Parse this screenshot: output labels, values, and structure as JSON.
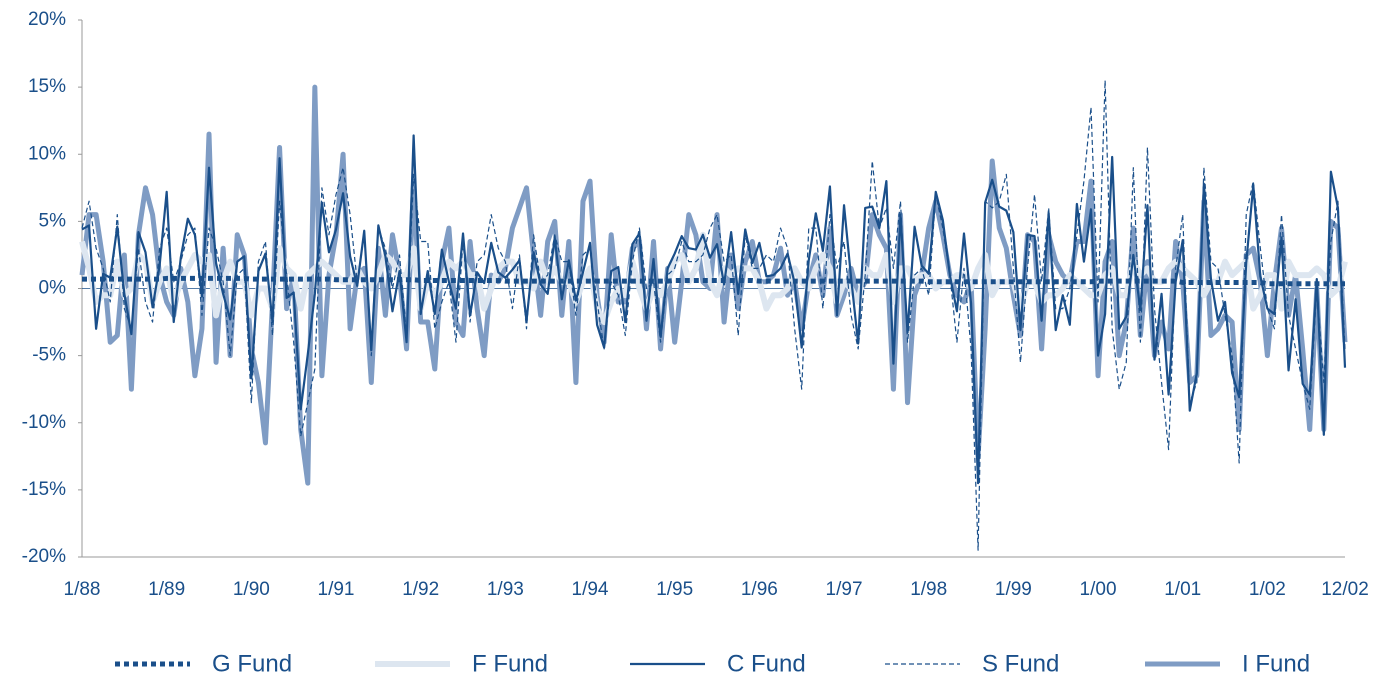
{
  "chart_data": {
    "type": "line",
    "categories": [
      "1/88",
      null,
      null,
      null,
      null,
      null,
      null,
      null,
      null,
      null,
      null,
      null,
      "1/89",
      null,
      null,
      null,
      null,
      null,
      null,
      null,
      null,
      null,
      null,
      null,
      "1/90",
      null,
      null,
      null,
      null,
      null,
      null,
      null,
      null,
      null,
      null,
      null,
      "1/91",
      null,
      null,
      null,
      null,
      null,
      null,
      null,
      null,
      null,
      null,
      null,
      "1/92",
      null,
      null,
      null,
      null,
      null,
      null,
      null,
      null,
      null,
      null,
      null,
      "1/93",
      null,
      null,
      null,
      null,
      null,
      null,
      null,
      null,
      null,
      null,
      null,
      "1/94",
      null,
      null,
      null,
      null,
      null,
      null,
      null,
      null,
      null,
      null,
      null,
      "1/95",
      null,
      null,
      null,
      null,
      null,
      null,
      null,
      null,
      null,
      null,
      null,
      "1/96",
      null,
      null,
      null,
      null,
      null,
      null,
      null,
      null,
      null,
      null,
      null,
      "1/97",
      null,
      null,
      null,
      null,
      null,
      null,
      null,
      null,
      null,
      null,
      null,
      "1/98",
      null,
      null,
      null,
      null,
      null,
      null,
      null,
      null,
      null,
      null,
      null,
      "1/99",
      null,
      null,
      null,
      null,
      null,
      null,
      null,
      null,
      null,
      null,
      null,
      "1/00",
      null,
      null,
      null,
      null,
      null,
      null,
      null,
      null,
      null,
      null,
      null,
      "1/01",
      null,
      null,
      null,
      null,
      null,
      null,
      null,
      null,
      null,
      null,
      null,
      "1/02",
      null,
      null,
      null,
      null,
      null,
      null,
      null,
      null,
      null,
      null,
      "12/02"
    ],
    "ylim": [
      -20,
      20
    ],
    "yticks": [
      {
        "value": -20,
        "label": "-20%"
      },
      {
        "value": -15,
        "label": "-15%"
      },
      {
        "value": -10,
        "label": "-10%"
      },
      {
        "value": -5,
        "label": "-5%"
      },
      {
        "value": 0,
        "label": "0%"
      },
      {
        "value": 5,
        "label": "5%"
      },
      {
        "value": 10,
        "label": "10%"
      },
      {
        "value": 15,
        "label": "15%"
      },
      {
        "value": 20,
        "label": "20%"
      }
    ],
    "series": [
      {
        "name": "G Fund",
        "color": "#1a4f8a",
        "style": "dotted",
        "values": [
          0.7,
          0.7,
          0.7,
          0.7,
          0.7,
          0.7,
          0.7,
          0.7,
          0.7,
          0.7,
          0.7,
          0.7,
          0.75,
          0.75,
          0.75,
          0.75,
          0.75,
          0.75,
          0.75,
          0.75,
          0.75,
          0.75,
          0.75,
          0.75,
          0.7,
          0.7,
          0.7,
          0.7,
          0.7,
          0.7,
          0.7,
          0.7,
          0.7,
          0.7,
          0.7,
          0.7,
          0.65,
          0.65,
          0.65,
          0.65,
          0.65,
          0.65,
          0.65,
          0.65,
          0.65,
          0.65,
          0.65,
          0.65,
          0.6,
          0.6,
          0.6,
          0.6,
          0.6,
          0.6,
          0.6,
          0.6,
          0.6,
          0.6,
          0.6,
          0.6,
          0.55,
          0.55,
          0.55,
          0.55,
          0.55,
          0.55,
          0.55,
          0.55,
          0.55,
          0.55,
          0.55,
          0.55,
          0.55,
          0.55,
          0.55,
          0.55,
          0.55,
          0.55,
          0.55,
          0.55,
          0.55,
          0.55,
          0.55,
          0.55,
          0.6,
          0.6,
          0.6,
          0.6,
          0.6,
          0.6,
          0.6,
          0.6,
          0.6,
          0.6,
          0.6,
          0.6,
          0.55,
          0.55,
          0.55,
          0.55,
          0.55,
          0.55,
          0.55,
          0.55,
          0.55,
          0.55,
          0.55,
          0.55,
          0.55,
          0.55,
          0.55,
          0.55,
          0.55,
          0.55,
          0.55,
          0.55,
          0.55,
          0.55,
          0.55,
          0.55,
          0.5,
          0.5,
          0.5,
          0.5,
          0.5,
          0.5,
          0.5,
          0.5,
          0.5,
          0.5,
          0.5,
          0.5,
          0.5,
          0.5,
          0.5,
          0.5,
          0.5,
          0.5,
          0.5,
          0.5,
          0.5,
          0.5,
          0.5,
          0.5,
          0.55,
          0.55,
          0.55,
          0.55,
          0.55,
          0.55,
          0.55,
          0.55,
          0.55,
          0.55,
          0.55,
          0.55,
          0.45,
          0.45,
          0.45,
          0.45,
          0.45,
          0.45,
          0.45,
          0.45,
          0.45,
          0.45,
          0.45,
          0.45,
          0.35,
          0.35,
          0.35,
          0.35,
          0.35,
          0.35,
          0.35,
          0.35,
          0.35,
          0.35,
          0.35,
          0.35
        ]
      },
      {
        "name": "F Fund",
        "color": "#dde6f0",
        "style": "thick",
        "values": [
          3.5,
          1.5,
          -1.0,
          -0.5,
          -0.5,
          2.0,
          -0.5,
          0.0,
          2.5,
          2.0,
          -1.0,
          0.5,
          1.5,
          -1.0,
          0.5,
          1.5,
          2.5,
          2.0,
          2.5,
          -2.0,
          0.5,
          2.0,
          0.5,
          0.5,
          -2.0,
          0.0,
          0.0,
          -1.5,
          3.0,
          1.5,
          1.0,
          -1.5,
          1.0,
          1.5,
          2.0,
          1.5,
          1.0,
          0.5,
          0.5,
          1.5,
          0.5,
          0.0,
          1.0,
          2.5,
          2.0,
          1.0,
          1.0,
          3.0,
          -1.5,
          0.5,
          -0.5,
          0.5,
          2.0,
          1.5,
          2.0,
          1.0,
          1.0,
          -1.5,
          0.0,
          1.5,
          2.0,
          2.0,
          0.5,
          0.5,
          0.0,
          2.0,
          0.5,
          1.5,
          0.5,
          0.5,
          -1.0,
          0.5,
          1.5,
          -1.5,
          -2.5,
          -1.0,
          0.0,
          -0.5,
          2.0,
          0.0,
          -1.5,
          0.0,
          -0.5,
          0.5,
          2.0,
          2.5,
          0.5,
          1.5,
          4.0,
          0.5,
          -0.5,
          1.5,
          1.0,
          1.5,
          1.5,
          1.5,
          0.5,
          -1.5,
          -0.5,
          -0.5,
          0.0,
          1.5,
          0.5,
          0.0,
          1.5,
          2.5,
          1.5,
          -1.0,
          0.5,
          0.0,
          -1.0,
          1.5,
          1.0,
          1.0,
          2.5,
          -1.0,
          1.5,
          1.5,
          0.5,
          1.0,
          1.0,
          0.0,
          0.5,
          0.5,
          1.0,
          1.0,
          0.0,
          1.5,
          2.5,
          -0.5,
          0.5,
          0.5,
          0.5,
          -1.5,
          0.5,
          0.5,
          -1.0,
          -0.5,
          -0.5,
          0.0,
          1.0,
          0.5,
          0.0,
          -0.5,
          -0.5,
          1.0,
          1.5,
          -0.5,
          -0.5,
          2.0,
          1.0,
          1.5,
          0.5,
          0.5,
          1.5,
          2.0,
          1.5,
          1.0,
          0.5,
          -0.5,
          0.5,
          0.5,
          2.0,
          1.0,
          1.5,
          2.0,
          -1.5,
          -0.5,
          1.0,
          1.0,
          -1.5,
          2.0,
          1.0,
          1.0,
          1.0,
          1.5,
          1.0,
          -0.5,
          0.0,
          2.0
        ]
      },
      {
        "name": "C Fund",
        "color": "#1a4f8a",
        "style": "solid",
        "values": [
          4.4,
          4.7,
          -3.0,
          1.1,
          0.8,
          4.6,
          -0.4,
          -3.4,
          4.2,
          2.7,
          -1.4,
          1.7,
          7.2,
          -2.5,
          2.3,
          5.2,
          4.0,
          -0.6,
          9.0,
          1.9,
          -0.4,
          -2.3,
          2.0,
          2.4,
          -6.7,
          1.3,
          2.6,
          -2.5,
          9.7,
          -0.7,
          -0.3,
          -9.0,
          -4.9,
          -0.4,
          6.4,
          2.7,
          4.4,
          7.1,
          2.4,
          0.2,
          4.3,
          -4.6,
          4.7,
          2.4,
          -1.7,
          1.3,
          -4.0,
          11.4,
          -1.9,
          1.3,
          -1.9,
          2.9,
          0.5,
          -1.5,
          4.1,
          -2.0,
          1.2,
          0.4,
          3.4,
          1.2,
          0.8,
          1.4,
          2.1,
          -2.4,
          2.7,
          0.3,
          -0.4,
          3.8,
          -0.8,
          2.1,
          -0.9,
          1.2,
          3.4,
          -2.7,
          -4.4,
          1.3,
          1.6,
          -2.5,
          3.3,
          4.1,
          -2.4,
          2.2,
          -3.6,
          1.5,
          2.6,
          3.9,
          3.0,
          2.9,
          4.0,
          2.3,
          3.3,
          0.3,
          4.2,
          -0.4,
          4.4,
          1.9,
          3.4,
          0.9,
          1.0,
          1.5,
          2.6,
          0.4,
          -4.4,
          2.1,
          5.6,
          2.8,
          7.6,
          -2.0,
          6.2,
          0.8,
          -4.1,
          6.0,
          6.1,
          4.5,
          8.0,
          -5.6,
          5.5,
          -3.3,
          4.6,
          1.7,
          1.1,
          7.2,
          5.1,
          1.0,
          -1.7,
          4.1,
          -1.1,
          -14.5,
          6.4,
          8.1,
          6.1,
          5.8,
          4.2,
          -3.1,
          4.0,
          3.9,
          -2.4,
          5.6,
          -3.1,
          -0.5,
          -2.7,
          6.3,
          2.0,
          5.9,
          -5.0,
          -1.9,
          9.8,
          -3.0,
          -2.1,
          2.5,
          -1.6,
          6.2,
          -5.3,
          -0.4,
          -7.9,
          0.5,
          3.6,
          -9.1,
          -6.3,
          7.8,
          0.7,
          -2.4,
          -1.0,
          -6.3,
          -8.1,
          1.9,
          7.7,
          0.9,
          -1.5,
          -1.9,
          3.8,
          -6.1,
          -0.8,
          -7.1,
          -7.9,
          0.7,
          -10.9,
          8.7,
          6.0,
          -5.9
        ]
      },
      {
        "name": "S Fund",
        "color": "#1a4f8a",
        "style": "dashed",
        "values": [
          4.5,
          6.5,
          3.0,
          1.5,
          -1.0,
          5.5,
          -1.5,
          -3.0,
          3.0,
          -1.0,
          -2.5,
          3.0,
          4.5,
          0.5,
          2.0,
          4.0,
          4.5,
          -2.0,
          4.5,
          3.0,
          0.5,
          -5.0,
          1.0,
          1.5,
          -8.5,
          2.0,
          3.5,
          -3.5,
          6.5,
          1.0,
          -4.0,
          -11.0,
          -8.5,
          -6.0,
          7.5,
          4.0,
          7.0,
          9.0,
          5.5,
          0.5,
          4.0,
          -5.0,
          4.5,
          3.0,
          0.0,
          2.5,
          -3.5,
          8.5,
          3.5,
          3.5,
          -3.0,
          -1.0,
          0.5,
          -4.0,
          3.5,
          -2.5,
          2.0,
          2.5,
          5.5,
          3.0,
          2.0,
          -1.5,
          2.5,
          -3.0,
          4.0,
          0.5,
          1.0,
          4.0,
          2.0,
          2.0,
          -2.0,
          2.5,
          3.0,
          -1.0,
          -4.5,
          0.5,
          -0.5,
          -3.5,
          2.0,
          4.5,
          0.0,
          0.5,
          -4.0,
          1.0,
          1.5,
          3.5,
          2.0,
          2.0,
          2.5,
          4.5,
          5.5,
          2.0,
          2.5,
          -3.5,
          4.0,
          1.5,
          1.5,
          2.5,
          2.0,
          4.5,
          3.0,
          -3.0,
          -7.5,
          4.5,
          4.5,
          -1.5,
          5.5,
          1.5,
          3.5,
          -2.0,
          -4.5,
          1.0,
          9.5,
          4.5,
          6.0,
          1.5,
          6.5,
          -4.0,
          1.0,
          1.5,
          -0.5,
          7.0,
          4.5,
          1.0,
          -4.0,
          1.5,
          -4.5,
          -19.5,
          6.5,
          6.0,
          6.5,
          8.5,
          1.5,
          -5.5,
          1.5,
          7.0,
          0.5,
          6.0,
          -1.5,
          -1.5,
          0.0,
          4.0,
          8.0,
          13.5,
          -1.0,
          15.5,
          -3.0,
          -7.5,
          -5.5,
          9.0,
          -4.0,
          10.5,
          -1.5,
          -7.0,
          -12.0,
          1.5,
          5.5,
          -8.5,
          -7.0,
          9.0,
          2.0,
          1.5,
          -2.0,
          -5.0,
          -13.0,
          5.5,
          8.0,
          3.0,
          -1.5,
          -3.0,
          5.5,
          -2.0,
          -4.5,
          -7.0,
          -9.0,
          0.0,
          -7.0,
          3.5,
          6.5,
          -4.5
        ]
      },
      {
        "name": "I Fund",
        "color": "#7f9cc4",
        "style": "medium",
        "values": [
          1.0,
          5.5,
          5.5,
          2.0,
          -4.0,
          -3.5,
          2.5,
          -7.5,
          4.0,
          7.5,
          5.5,
          1.0,
          -1.0,
          -2.0,
          1.5,
          -1.0,
          -6.5,
          -3.0,
          11.5,
          -5.5,
          3.0,
          -5.0,
          4.0,
          2.5,
          -4.5,
          -7.0,
          -11.5,
          -1.0,
          10.5,
          -1.5,
          1.0,
          -10.5,
          -14.5,
          15.0,
          -6.5,
          1.0,
          4.0,
          10.0,
          -3.0,
          1.0,
          1.5,
          -7.0,
          3.0,
          -2.0,
          4.0,
          1.0,
          -4.5,
          8.0,
          -2.5,
          -2.5,
          -6.0,
          2.0,
          4.5,
          -2.5,
          -3.5,
          3.5,
          -1.5,
          -5.0,
          1.0,
          0.5,
          1.5,
          4.5,
          6.0,
          7.5,
          2.5,
          -2.0,
          3.5,
          5.0,
          -2.0,
          3.5,
          -7.0,
          6.5,
          8.0,
          -0.5,
          -4.0,
          4.0,
          -1.0,
          -1.0,
          3.0,
          3.5,
          -3.0,
          3.5,
          -4.5,
          1.5,
          -4.0,
          0.5,
          5.5,
          4.0,
          0.5,
          0.0,
          5.5,
          -2.5,
          2.5,
          -1.5,
          2.0,
          3.5,
          0.5,
          0.5,
          1.0,
          3.0,
          -0.5,
          0.5,
          -3.0,
          0.5,
          2.5,
          -0.5,
          4.5,
          -2.0,
          -0.5,
          1.5,
          -0.5,
          0.5,
          5.5,
          4.0,
          3.0,
          -7.5,
          5.5,
          -8.5,
          -0.5,
          1.0,
          4.5,
          6.5,
          4.0,
          1.0,
          -0.5,
          -1.0,
          0.5,
          -12.5,
          -3.0,
          9.5,
          4.5,
          3.0,
          -0.5,
          -3.5,
          4.0,
          3.5,
          -4.5,
          4.0,
          2.0,
          1.0,
          0.5,
          3.5,
          3.5,
          8.0,
          -6.5,
          2.0,
          3.5,
          -5.0,
          -2.5,
          4.5,
          -3.5,
          2.0,
          -5.0,
          -2.5,
          -4.5,
          3.5,
          0.5,
          -7.0,
          -6.5,
          6.5,
          -3.5,
          -3.0,
          -2.0,
          -2.5,
          -10.5,
          2.5,
          3.0,
          0.5,
          -5.0,
          0.5,
          4.5,
          -2.0,
          1.0,
          -4.5,
          -10.5,
          0.0,
          -10.5,
          5.0,
          4.5,
          -4.0
        ]
      }
    ]
  }
}
